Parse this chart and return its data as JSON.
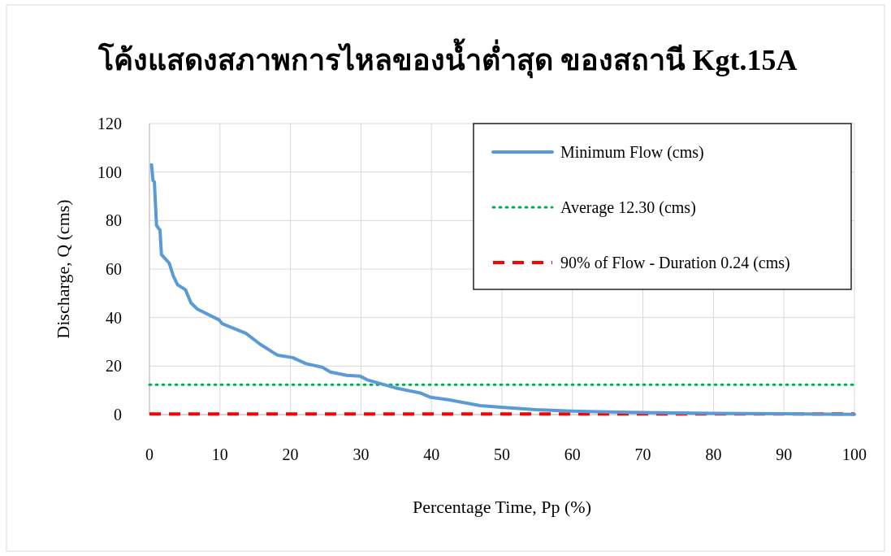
{
  "chart_data": {
    "type": "line",
    "title": "โค้งแสดงสภาพการไหลของน้ำต่ำสุด ของสถานี Kgt.15A",
    "xlabel": "Percentage Time, Pp (%)",
    "ylabel": "Discharge, Q (cms)",
    "xlim": [
      0,
      100
    ],
    "xticks": [
      0,
      10,
      20,
      30,
      40,
      50,
      60,
      70,
      80,
      90,
      100
    ],
    "ylim": [
      0,
      120
    ],
    "yticks": [
      0,
      20,
      40,
      60,
      80,
      100,
      120
    ],
    "grid": true,
    "legend": "top right",
    "series": [
      {
        "name": "Minimum Flow (cms)",
        "color": "#5b9bd5",
        "line_style": "solid",
        "x": [
          0.3,
          0.5,
          0.7,
          1.0,
          1.5,
          1.7,
          2.8,
          3.4,
          4.0,
          5.1,
          5.9,
          6.8,
          9.9,
          10.3,
          13.7,
          15.7,
          17.6,
          18.2,
          20.3,
          22.2,
          24.5,
          25.7,
          28,
          29.9,
          30.9,
          34.9,
          38.4,
          39.9,
          42.4,
          46.9,
          49.9,
          54.8,
          59.9,
          64.9,
          70,
          80,
          90,
          100
        ],
        "values": [
          103,
          96.5,
          96,
          78,
          76,
          66,
          62.5,
          57,
          53.5,
          51.5,
          46,
          43.5,
          39,
          37.5,
          33.5,
          29,
          25.5,
          24.5,
          23.5,
          21,
          19.5,
          17.5,
          16.2,
          15.8,
          14.3,
          11,
          8.9,
          7.1,
          6.1,
          3.7,
          3.0,
          2.0,
          1.4,
          1.1,
          0.8,
          0.5,
          0.3,
          0.1
        ]
      },
      {
        "name": "Average 12.30 (cms)",
        "color": "#00b050",
        "line_style": "dotted",
        "x": [
          0,
          100
        ],
        "values": [
          12.3,
          12.3
        ]
      },
      {
        "name": "90% of Flow - Duration 0.24 (cms)",
        "color": "#ff0000",
        "line_style": "dashed",
        "x": [
          0,
          100
        ],
        "values": [
          0.24,
          0.24
        ]
      }
    ]
  }
}
